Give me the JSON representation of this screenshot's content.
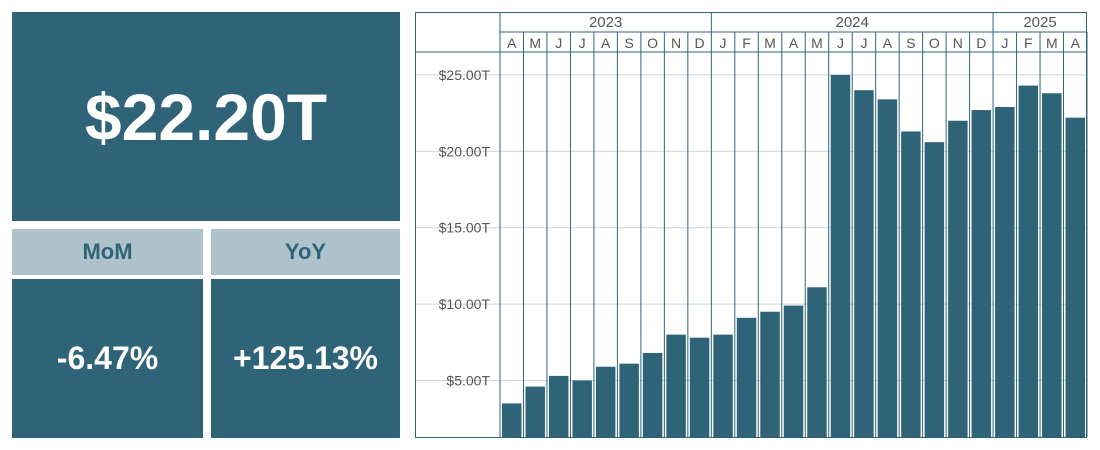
{
  "kpi": {
    "main_value": "$22.20T",
    "mom_label": "MoM",
    "yoy_label": "YoY",
    "mom_value": "-6.47%",
    "yoy_value": "+125.13%"
  },
  "colors": {
    "primary": "#2f6478",
    "header_bg": "#adc2cb",
    "grid": "#c9d6dc",
    "axis_text": "#555555"
  },
  "chart_data": {
    "type": "bar",
    "years": [
      {
        "label": "2023",
        "span": 9
      },
      {
        "label": "2024",
        "span": 12
      },
      {
        "label": "2025",
        "span": 4
      }
    ],
    "categories": [
      "A",
      "M",
      "J",
      "J",
      "A",
      "S",
      "O",
      "N",
      "D",
      "J",
      "F",
      "M",
      "A",
      "M",
      "J",
      "J",
      "A",
      "S",
      "O",
      "N",
      "D",
      "J",
      "F",
      "M",
      "A"
    ],
    "values": [
      3.5,
      4.6,
      5.3,
      5.0,
      5.9,
      6.1,
      6.8,
      8.0,
      7.8,
      8.0,
      9.1,
      9.5,
      9.9,
      11.1,
      25.0,
      24.0,
      23.4,
      21.3,
      20.6,
      22.0,
      22.7,
      22.9,
      24.3,
      23.8,
      22.2
    ],
    "y_ticks": [
      {
        "value": 5,
        "label": "$5.00T"
      },
      {
        "value": 10,
        "label": "$10.00T"
      },
      {
        "value": 15,
        "label": "$15.00T"
      },
      {
        "value": 20,
        "label": "$20.00T"
      },
      {
        "value": 25,
        "label": "$25.00T"
      }
    ],
    "ylim": [
      1.3,
      26.5
    ],
    "grid": true
  }
}
